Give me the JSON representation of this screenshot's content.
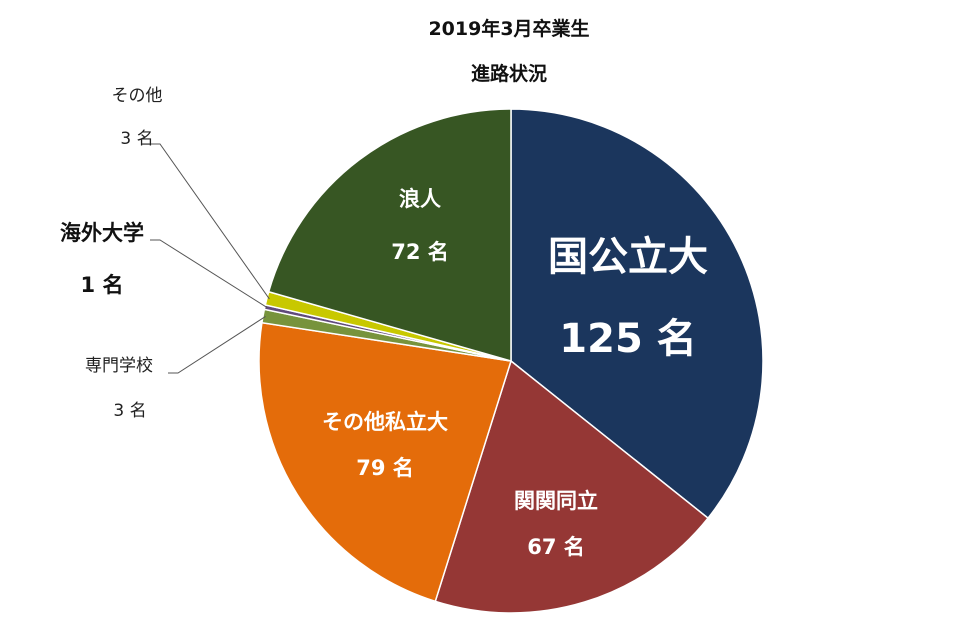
{
  "chart_data": {
    "type": "pie",
    "title": "2019年3月卒業生",
    "subtitle": "進路状況",
    "unit": "名",
    "slices": [
      {
        "label": "国公立大",
        "value": 125,
        "value_text": "125 名",
        "color": "#1b365d"
      },
      {
        "label": "関関同立",
        "value": 67,
        "value_text": "67 名",
        "color": "#953735"
      },
      {
        "label": "その他私立大",
        "value": 79,
        "value_text": "79 名",
        "color": "#e46c0a"
      },
      {
        "label": "専門学校",
        "value": 3,
        "value_text": "3 名",
        "color": "#77933c"
      },
      {
        "label": "海外大学",
        "value": 1,
        "value_text": "1 名",
        "color": "#604a7b"
      },
      {
        "label": "その他",
        "value": 3,
        "value_text": "3 名",
        "color": "#c8c800"
      },
      {
        "label": "浪人",
        "value": 72,
        "value_text": "72 名",
        "color": "#375623"
      }
    ]
  }
}
